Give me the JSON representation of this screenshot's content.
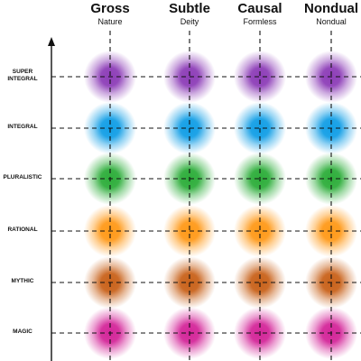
{
  "columns": [
    {
      "title": "Gross",
      "subtitle": "Nature"
    },
    {
      "title": "Subtle",
      "subtitle": "Deity"
    },
    {
      "title": "Causal",
      "subtitle": "Formless"
    },
    {
      "title": "Nondual",
      "subtitle": "Nondual"
    }
  ],
  "rows": [
    {
      "label": "SUPER\nINTEGRAL",
      "color": "#8e3fb8"
    },
    {
      "label": "INTEGRAL",
      "color": "#149fe6"
    },
    {
      "label": "PLURALISTIC",
      "color": "#2fae3c"
    },
    {
      "label": "RATIONAL",
      "color": "#ff9a1a"
    },
    {
      "label": "MYTHIC",
      "color": "#c9631c"
    },
    {
      "label": "MAGIC",
      "color": "#d4289a"
    }
  ],
  "line_color": "#111111"
}
